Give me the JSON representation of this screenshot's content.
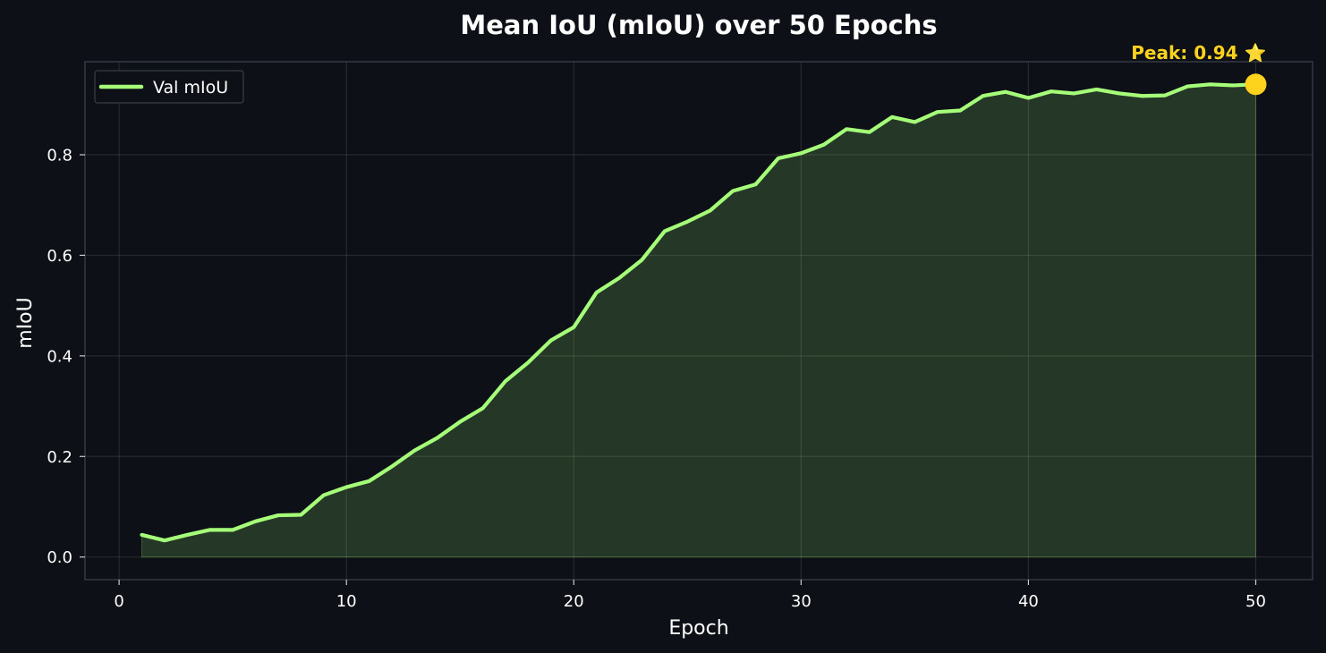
{
  "chart_data": {
    "type": "line",
    "title": "Mean IoU (mIoU) over 50 Epochs",
    "xlabel": "Epoch",
    "ylabel": "mIoU",
    "xlim": [
      -1.5,
      52.5
    ],
    "ylim": [
      -0.045,
      0.985
    ],
    "xticks": [
      0,
      10,
      20,
      30,
      40,
      50
    ],
    "yticks": [
      0.0,
      0.2,
      0.4,
      0.6,
      0.8
    ],
    "xtick_labels": [
      "0",
      "10",
      "20",
      "30",
      "40",
      "50"
    ],
    "ytick_labels": [
      "0.0",
      "0.2",
      "0.4",
      "0.6",
      "0.8"
    ],
    "grid": true,
    "legend_position": "top-left",
    "series": [
      {
        "name": "Val mIoU",
        "color": "#a6ff78",
        "fill": "area",
        "x": [
          1,
          2,
          3,
          4,
          5,
          6,
          7,
          8,
          9,
          10,
          11,
          12,
          13,
          14,
          15,
          16,
          17,
          18,
          19,
          20,
          21,
          22,
          23,
          24,
          25,
          26,
          27,
          28,
          29,
          30,
          31,
          32,
          33,
          34,
          35,
          36,
          37,
          38,
          39,
          40,
          41,
          42,
          43,
          44,
          45,
          46,
          47,
          48,
          49,
          50
        ],
        "y": [
          0.044,
          0.033,
          0.044,
          0.054,
          0.054,
          0.071,
          0.083,
          0.084,
          0.123,
          0.139,
          0.151,
          0.18,
          0.212,
          0.237,
          0.269,
          0.296,
          0.35,
          0.387,
          0.431,
          0.457,
          0.526,
          0.555,
          0.591,
          0.648,
          0.667,
          0.689,
          0.728,
          0.741,
          0.793,
          0.803,
          0.82,
          0.851,
          0.845,
          0.875,
          0.865,
          0.885,
          0.888,
          0.917,
          0.925,
          0.913,
          0.926,
          0.922,
          0.93,
          0.922,
          0.917,
          0.918,
          0.936,
          0.94,
          0.938,
          0.94
        ]
      }
    ],
    "annotations": [
      {
        "text": "Peak: 0.94 ⭐",
        "x": 50,
        "y": 0.94,
        "color": "#ffd21e",
        "text_y": 0.985
      }
    ]
  }
}
